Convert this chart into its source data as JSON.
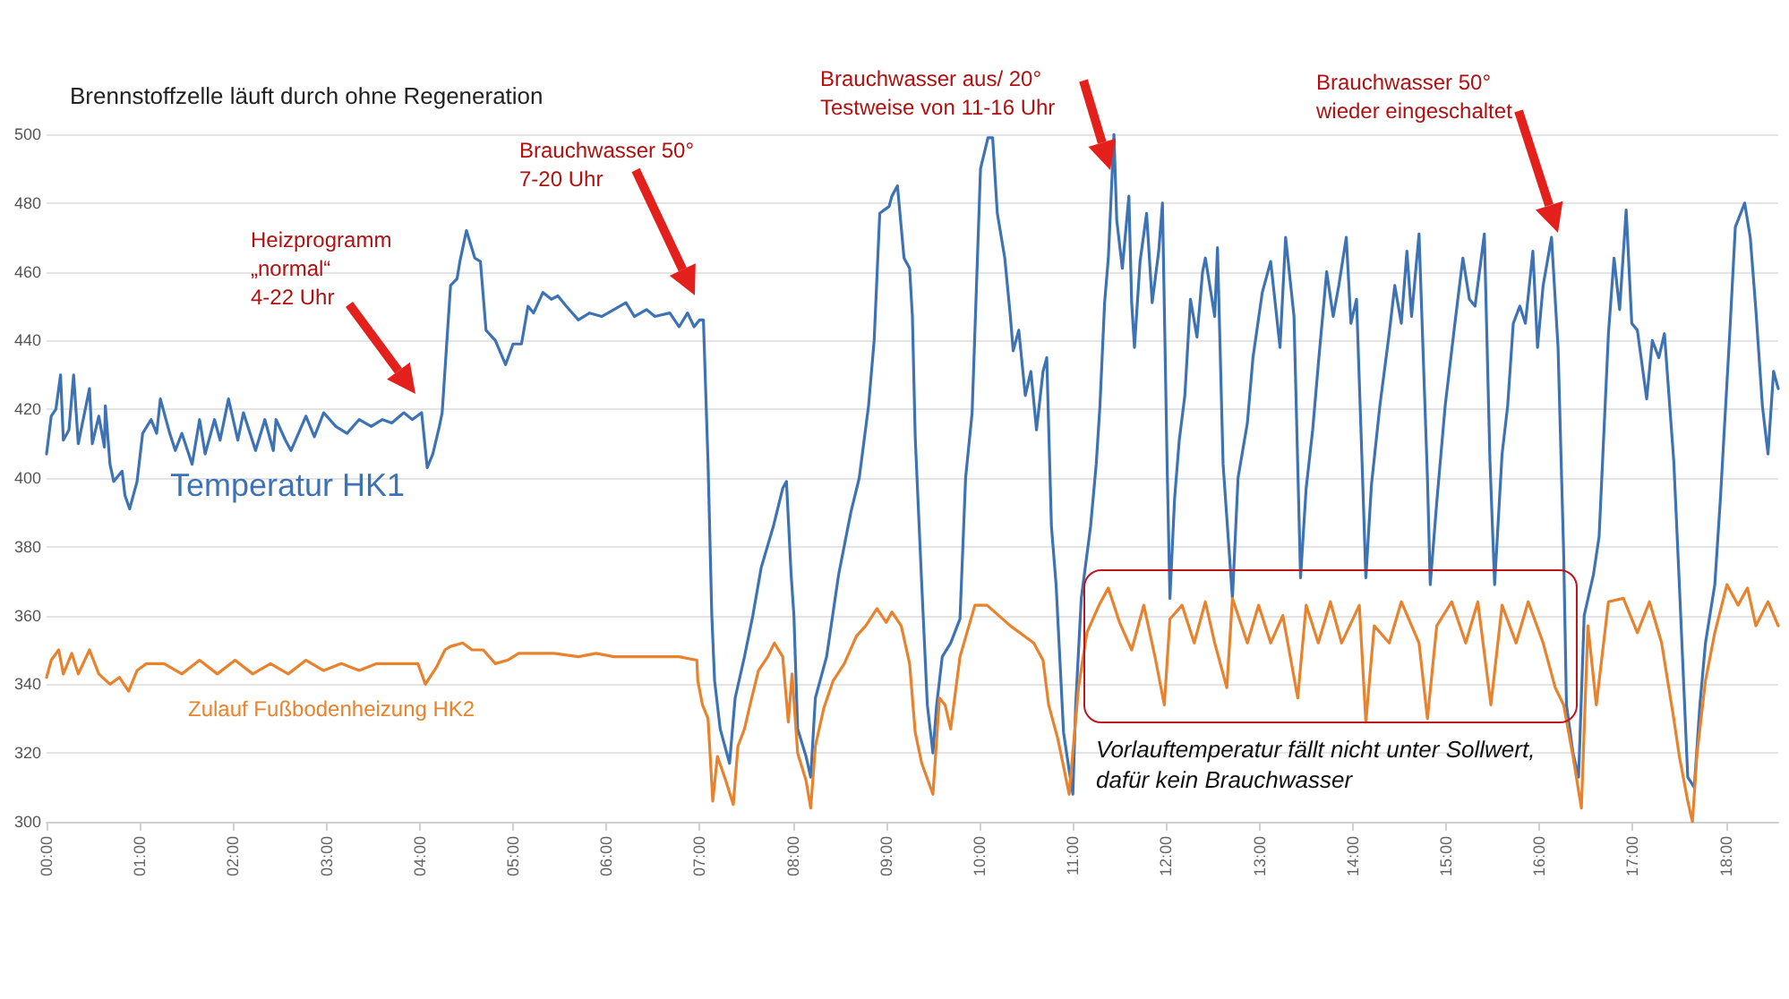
{
  "chart_data": {
    "type": "line",
    "title": "Brennstoffzelle läuft durch ohne Regeneration",
    "xlim": [
      0,
      18.56
    ],
    "ylim": [
      300,
      500
    ],
    "yticks": [
      300,
      320,
      340,
      360,
      380,
      400,
      420,
      440,
      460,
      480,
      500
    ],
    "xticks": [
      {
        "value": 0,
        "label": "00:00"
      },
      {
        "value": 1,
        "label": "01:00"
      },
      {
        "value": 2,
        "label": "02:00"
      },
      {
        "value": 3,
        "label": "03:00"
      },
      {
        "value": 4,
        "label": "04:00"
      },
      {
        "value": 5,
        "label": "05:00"
      },
      {
        "value": 6,
        "label": "06:00"
      },
      {
        "value": 7,
        "label": "07:00"
      },
      {
        "value": 8,
        "label": "08:00"
      },
      {
        "value": 9,
        "label": "09:00"
      },
      {
        "value": 10,
        "label": "10:00"
      },
      {
        "value": 11,
        "label": "11:00"
      },
      {
        "value": 12,
        "label": "12:00"
      },
      {
        "value": 13,
        "label": "13:00"
      },
      {
        "value": 14,
        "label": "14:00"
      },
      {
        "value": 15,
        "label": "15:00"
      },
      {
        "value": 16,
        "label": "16:00"
      },
      {
        "value": 17,
        "label": "17:00"
      },
      {
        "value": 18,
        "label": "18:00"
      }
    ],
    "grid": "y",
    "legend": false,
    "marker": "none",
    "line_style": "solid",
    "annotations": [
      "Heizprogramm\n„normal“\n4-22 Uhr",
      "Brauchwasser 50°\n7-20 Uhr",
      "Brauchwasser aus/ 20°\nTestweise von 11-16 Uhr",
      "Brauchwasser 50°\nwieder eingeschaltet",
      "Vorlauftemperatur fällt nicht unter Sollwert,\ndafür kein Brauchwasser"
    ],
    "series": [
      {
        "name": "Temperatur HK1",
        "color": "#3d73b4",
        "x": [
          0.0,
          0.05,
          0.1,
          0.15,
          0.18,
          0.24,
          0.29,
          0.34,
          0.4,
          0.46,
          0.49,
          0.56,
          0.62,
          0.63,
          0.68,
          0.72,
          0.81,
          0.84,
          0.89,
          0.97,
          1.03,
          1.12,
          1.18,
          1.22,
          1.32,
          1.38,
          1.45,
          1.56,
          1.64,
          1.7,
          1.8,
          1.86,
          1.95,
          2.05,
          2.11,
          2.24,
          2.34,
          2.43,
          2.46,
          2.56,
          2.62,
          2.78,
          2.87,
          2.97,
          3.1,
          3.22,
          3.35,
          3.48,
          3.6,
          3.7,
          3.83,
          3.92,
          4.02,
          4.08,
          4.14,
          4.21,
          4.24,
          4.33,
          4.4,
          4.43,
          4.5,
          4.59,
          4.65,
          4.71,
          4.81,
          4.92,
          5.0,
          5.09,
          5.16,
          5.22,
          5.32,
          5.41,
          5.48,
          5.57,
          5.7,
          5.82,
          5.95,
          6.08,
          6.21,
          6.3,
          6.43,
          6.52,
          6.68,
          6.78,
          6.87,
          6.94,
          7.0,
          7.04,
          7.09,
          7.13,
          7.16,
          7.22,
          7.32,
          7.38,
          7.48,
          7.57,
          7.66,
          7.79,
          7.89,
          7.93,
          7.98,
          8.01,
          8.05,
          8.14,
          8.19,
          8.24,
          8.36,
          8.49,
          8.62,
          8.71,
          8.81,
          8.87,
          8.93,
          9.03,
          9.06,
          9.12,
          9.19,
          9.25,
          9.28,
          9.31,
          9.38,
          9.44,
          9.5,
          9.54,
          9.6,
          9.69,
          9.79,
          9.85,
          9.92,
          10.01,
          10.09,
          10.14,
          10.19,
          10.27,
          10.33,
          10.36,
          10.42,
          10.49,
          10.55,
          10.61,
          10.68,
          10.72,
          10.77,
          10.82,
          10.9,
          10.96,
          11.0,
          11.03,
          11.09,
          11.19,
          11.25,
          11.29,
          11.34,
          11.38,
          11.44,
          11.47,
          11.53,
          11.6,
          11.63,
          11.66,
          11.72,
          11.79,
          11.85,
          11.92,
          11.96,
          12.01,
          12.04,
          12.09,
          12.14,
          12.2,
          12.26,
          12.33,
          12.39,
          12.42,
          12.52,
          12.55,
          12.61,
          12.71,
          12.77,
          12.87,
          12.93,
          13.03,
          13.12,
          13.22,
          13.28,
          13.37,
          13.44,
          13.5,
          13.57,
          13.63,
          13.72,
          13.79,
          13.85,
          13.93,
          13.98,
          14.04,
          14.1,
          14.14,
          14.2,
          14.29,
          14.39,
          14.45,
          14.52,
          14.58,
          14.63,
          14.71,
          14.8,
          14.83,
          14.9,
          14.99,
          15.09,
          15.18,
          15.25,
          15.31,
          15.41,
          15.47,
          15.52,
          15.6,
          15.66,
          15.72,
          15.79,
          15.85,
          15.93,
          15.98,
          16.04,
          16.13,
          16.2,
          16.26,
          16.29,
          16.36,
          16.42,
          16.48,
          16.58,
          16.64,
          16.74,
          16.8,
          16.86,
          16.93,
          16.99,
          17.05,
          17.15,
          17.21,
          17.28,
          17.34,
          17.44,
          17.5,
          17.59,
          17.66,
          17.72,
          17.78,
          17.88,
          17.94,
          18.04,
          18.1,
          18.2,
          18.26,
          18.32,
          18.39,
          18.45,
          18.51,
          18.56
        ],
        "values": [
          407,
          418,
          420,
          430,
          411,
          414,
          430,
          410,
          418,
          426,
          410,
          418,
          409,
          421,
          404,
          399,
          402,
          395,
          391,
          399,
          413,
          417,
          413,
          423,
          413,
          408,
          413,
          404,
          417,
          407,
          417,
          411,
          423,
          411,
          419,
          408,
          417,
          408,
          417,
          411,
          408,
          418,
          412,
          419,
          415,
          413,
          417,
          415,
          417,
          416,
          419,
          417,
          419,
          403,
          407,
          415,
          419,
          456,
          458,
          463,
          472,
          464,
          463,
          443,
          440,
          433,
          439,
          439,
          450,
          448,
          454,
          452,
          453,
          450,
          446,
          448,
          447,
          449,
          451,
          447,
          449,
          447,
          448,
          444,
          448,
          444,
          446,
          446,
          404,
          360,
          341,
          327,
          317,
          336,
          348,
          360,
          374,
          386,
          397,
          399,
          372,
          360,
          327,
          319,
          313,
          336,
          348,
          372,
          390,
          400,
          421,
          440,
          477,
          479,
          482,
          485,
          464,
          461,
          447,
          412,
          369,
          334,
          320,
          334,
          348,
          352,
          359,
          400,
          419,
          490,
          499,
          499,
          477,
          464,
          447,
          437,
          443,
          424,
          431,
          414,
          431,
          435,
          386,
          369,
          326,
          315,
          308,
          334,
          365,
          386,
          404,
          421,
          451,
          464,
          500,
          475,
          461,
          482,
          451,
          438,
          463,
          477,
          451,
          466,
          480,
          404,
          365,
          394,
          411,
          424,
          452,
          441,
          460,
          464,
          447,
          467,
          404,
          365,
          400,
          416,
          435,
          454,
          463,
          438,
          470,
          447,
          371,
          397,
          414,
          433,
          460,
          447,
          456,
          470,
          445,
          452,
          404,
          371,
          398,
          421,
          442,
          456,
          445,
          466,
          447,
          471,
          400,
          369,
          393,
          421,
          444,
          464,
          452,
          450,
          471,
          405,
          369,
          407,
          421,
          445,
          450,
          445,
          466,
          438,
          456,
          470,
          438,
          378,
          334,
          320,
          313,
          360,
          372,
          383,
          442,
          464,
          449,
          478,
          445,
          443,
          423,
          440,
          435,
          442,
          405,
          369,
          313,
          310,
          334,
          352,
          369,
          394,
          442,
          473,
          480,
          470,
          449,
          421,
          407,
          431,
          426
        ]
      },
      {
        "name": "Zulauf Fußbodenheizung HK2",
        "color": "#e8822c",
        "x": [
          0.0,
          0.05,
          0.13,
          0.18,
          0.27,
          0.34,
          0.46,
          0.56,
          0.68,
          0.78,
          0.88,
          0.97,
          1.07,
          1.26,
          1.45,
          1.64,
          1.83,
          2.02,
          2.21,
          2.4,
          2.59,
          2.78,
          2.97,
          3.16,
          3.35,
          3.54,
          3.79,
          3.98,
          4.06,
          4.18,
          4.27,
          4.33,
          4.46,
          4.56,
          4.68,
          4.81,
          4.94,
          5.06,
          5.25,
          5.44,
          5.7,
          5.89,
          6.08,
          6.33,
          6.52,
          6.78,
          6.97,
          6.98,
          7.03,
          7.09,
          7.14,
          7.19,
          7.28,
          7.36,
          7.41,
          7.48,
          7.54,
          7.63,
          7.73,
          7.8,
          7.89,
          7.95,
          7.99,
          8.05,
          8.14,
          8.19,
          8.24,
          8.33,
          8.43,
          8.55,
          8.68,
          8.78,
          8.9,
          9.0,
          9.06,
          9.16,
          9.25,
          9.31,
          9.38,
          9.5,
          9.57,
          9.63,
          9.69,
          9.79,
          9.95,
          10.08,
          10.33,
          10.58,
          10.68,
          10.74,
          10.84,
          10.96,
          11.06,
          11.15,
          11.28,
          11.38,
          11.5,
          11.63,
          11.76,
          11.88,
          11.98,
          12.04,
          12.17,
          12.3,
          12.42,
          12.52,
          12.65,
          12.71,
          12.87,
          12.99,
          13.12,
          13.25,
          13.41,
          13.5,
          13.63,
          13.76,
          13.88,
          14.07,
          14.14,
          14.23,
          14.39,
          14.52,
          14.71,
          14.8,
          14.9,
          15.06,
          15.21,
          15.34,
          15.48,
          15.6,
          15.75,
          15.88,
          16.04,
          16.17,
          16.26,
          16.36,
          16.45,
          16.52,
          16.61,
          16.74,
          16.9,
          17.05,
          17.18,
          17.31,
          17.44,
          17.5,
          17.59,
          17.64,
          17.69,
          17.78,
          17.88,
          18.01,
          18.13,
          18.23,
          18.32,
          18.45,
          18.56
        ],
        "values": [
          342,
          347,
          350,
          343,
          349,
          343,
          350,
          343,
          340,
          342,
          338,
          344,
          346,
          346,
          343,
          347,
          343,
          347,
          343,
          346,
          343,
          347,
          344,
          346,
          344,
          346,
          346,
          346,
          340,
          345,
          350,
          351,
          352,
          350,
          350,
          346,
          347,
          349,
          349,
          349,
          348,
          349,
          348,
          348,
          348,
          348,
          347,
          341,
          334,
          330,
          306,
          319,
          312,
          305,
          322,
          327,
          334,
          344,
          348,
          352,
          348,
          329,
          343,
          320,
          312,
          304,
          322,
          333,
          341,
          346,
          354,
          357,
          362,
          358,
          361,
          357,
          346,
          326,
          317,
          308,
          336,
          334,
          327,
          348,
          363,
          363,
          357,
          352,
          347,
          334,
          324,
          308,
          339,
          355,
          363,
          368,
          358,
          350,
          363,
          348,
          334,
          359,
          363,
          352,
          364,
          352,
          339,
          365,
          352,
          363,
          352,
          360,
          336,
          363,
          352,
          364,
          352,
          363,
          329,
          357,
          352,
          364,
          352,
          330,
          357,
          364,
          352,
          364,
          334,
          363,
          352,
          364,
          352,
          339,
          334,
          319,
          304,
          357,
          334,
          364,
          365,
          355,
          364,
          352,
          330,
          319,
          306,
          300,
          320,
          341,
          355,
          369,
          363,
          368,
          357,
          364,
          357
        ]
      }
    ]
  }
}
